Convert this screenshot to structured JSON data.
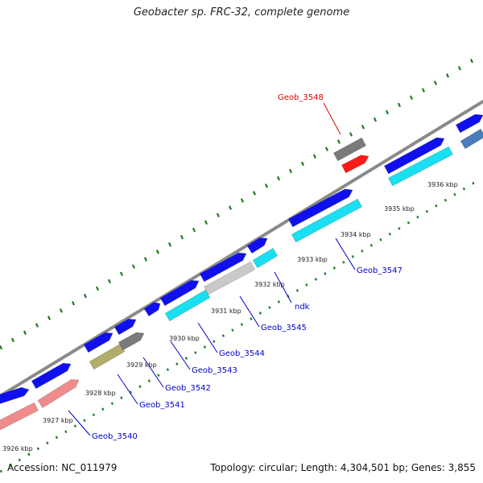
{
  "title": "Geobacter sp. FRC-32, complete genome",
  "footer": {
    "accession": "Accession: NC_011979",
    "summary": "Topology: circular; Length: 4,304,501 bp; Genes: 3,855"
  },
  "colors": {
    "backbone": "#8a8a8a",
    "ticks": "#1e7a1e",
    "blue": "#1010ee",
    "cyan": "#19dff0",
    "gray": "#7a7a7a",
    "lightgray": "#c9c9c9",
    "pink": "#f08b8b",
    "olive": "#b1ad6a",
    "red": "#ff1a1a",
    "steel": "#4a7dbb",
    "label_blue": "#0000cc",
    "label_red": "#dd0000"
  },
  "kbp_marks": [
    "3926 kbp",
    "3927 kbp",
    "3928 kbp",
    "3929 kbp",
    "3930 kbp",
    "3931 kbp",
    "3932 kbp",
    "3933 kbp",
    "3934 kbp",
    "3935 kbp",
    "3936 kbp"
  ],
  "gene_labels": [
    {
      "text": "Geob_3540",
      "color": "label_blue"
    },
    {
      "text": "Geob_3541",
      "color": "label_blue"
    },
    {
      "text": "Geob_3542",
      "color": "label_blue"
    },
    {
      "text": "Geob_3543",
      "color": "label_blue"
    },
    {
      "text": "Geob_3544",
      "color": "label_blue"
    },
    {
      "text": "Geob_3545",
      "color": "label_blue"
    },
    {
      "text": "ndk",
      "color": "label_blue"
    },
    {
      "text": "Geob_3547",
      "color": "label_blue"
    },
    {
      "text": "Geob_3548",
      "color": "label_red"
    }
  ]
}
